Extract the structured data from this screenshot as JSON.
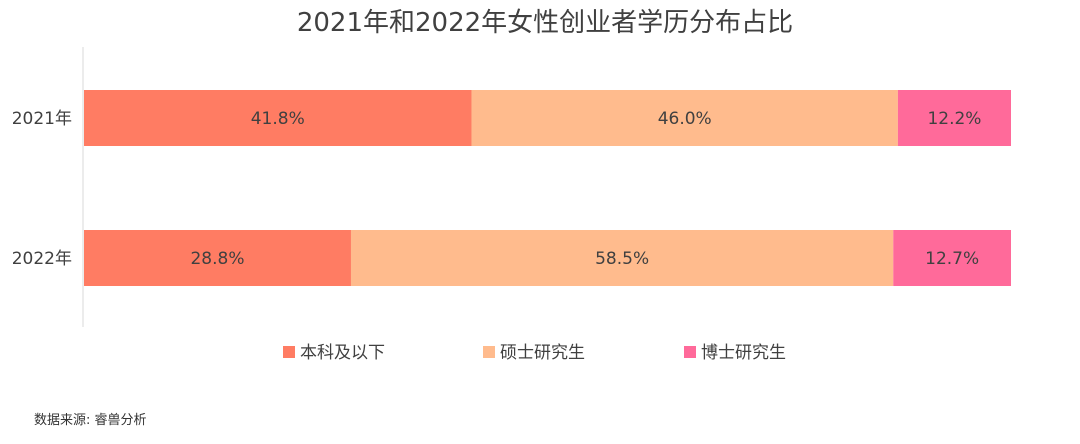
{
  "chart_data": {
    "type": "bar",
    "orientation": "horizontal",
    "stacked": true,
    "title": "2021年和2022年女性创业者学历分布占比",
    "categories": [
      "2021年",
      "2022年"
    ],
    "series": [
      {
        "name": "本科及以下",
        "values": [
          41.8,
          28.8
        ],
        "labels": [
          "41.8%",
          "28.8%"
        ],
        "color": "#FF7C63"
      },
      {
        "name": "硕士研究生",
        "values": [
          46.0,
          58.5
        ],
        "labels": [
          "46.0%",
          "58.5%"
        ],
        "color": "#FFBB8D"
      },
      {
        "name": "博士研究生",
        "values": [
          12.2,
          12.7
        ],
        "labels": [
          "12.2%",
          "12.7%"
        ],
        "color": "#FF6A9A"
      }
    ],
    "xlim": [
      0,
      100
    ],
    "grid": false,
    "legend": "bottom"
  },
  "source": "数据来源: 睿兽分析"
}
